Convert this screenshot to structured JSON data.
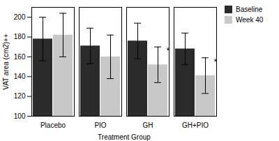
{
  "chart_data": {
    "type": "bar",
    "categories": [
      "Placebo",
      "PIO",
      "GH",
      "GH+PIO"
    ],
    "series": [
      {
        "name": "Baseline",
        "color": "#2b2b2b",
        "values": [
          178,
          171,
          176,
          168
        ],
        "errors": [
          22,
          18,
          18,
          16
        ]
      },
      {
        "name": "Week 40",
        "color": "#c8c8c8",
        "values": [
          182,
          160,
          152,
          141
        ],
        "errors": [
          22,
          22,
          18,
          18
        ]
      }
    ],
    "xlabel": "Treatment Group",
    "ylabel": "VAT area (cm2)++",
    "ylim": [
      100,
      210
    ],
    "yticks": [
      100,
      120,
      140,
      160,
      180,
      200
    ],
    "annotations": [
      {
        "text": "*",
        "category": "GH",
        "series": "Week 40"
      },
      {
        "text": "*",
        "category": "GH+PIO",
        "series": "Week 40"
      }
    ],
    "legend": "right"
  }
}
